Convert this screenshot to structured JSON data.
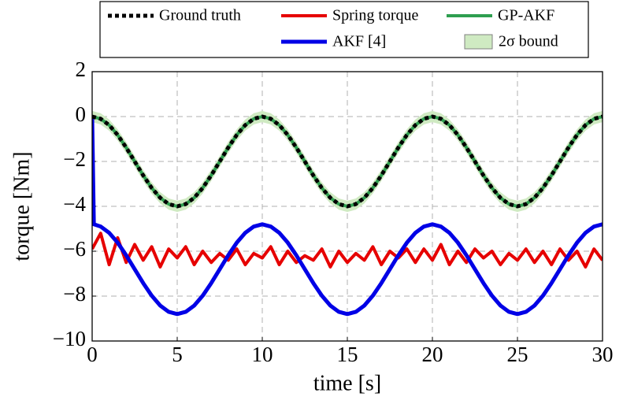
{
  "chart_data": {
    "type": "line",
    "xlabel": "time [s]",
    "ylabel": "torque [Nm]",
    "xlim": [
      0,
      30
    ],
    "ylim": [
      -10,
      2
    ],
    "xticks": [
      0,
      5,
      10,
      15,
      20,
      25,
      30
    ],
    "yticks": [
      2,
      0,
      {
        "value": -2,
        "label": "−2"
      },
      {
        "value": -4,
        "label": "−4"
      },
      {
        "value": -6,
        "label": "−6"
      },
      {
        "value": -8,
        "label": "−8"
      },
      {
        "value": -10,
        "label": "−10"
      }
    ],
    "grid": true,
    "legend": "top",
    "x": [
      0,
      0.5,
      1,
      1.5,
      2,
      2.5,
      3,
      3.5,
      4,
      4.5,
      5,
      5.5,
      6,
      6.5,
      7,
      7.5,
      8,
      8.5,
      9,
      9.5,
      10,
      10.5,
      11,
      11.5,
      12,
      12.5,
      13,
      13.5,
      14,
      14.5,
      15,
      15.5,
      16,
      16.5,
      17,
      17.5,
      18,
      18.5,
      19,
      19.5,
      20,
      20.5,
      21,
      21.5,
      22,
      22.5,
      23,
      23.5,
      24,
      24.5,
      25,
      25.5,
      26,
      26.5,
      27,
      27.5,
      28,
      28.5,
      29,
      29.5,
      30
    ],
    "series": [
      {
        "name": "2σ bound",
        "color": "#cfeac2",
        "kind": "band",
        "lower": [
          -0.25,
          -0.35,
          -0.63,
          -1.07,
          -1.63,
          -2.25,
          -2.87,
          -3.43,
          -3.87,
          -4.15,
          -4.25,
          -4.15,
          -3.87,
          -3.43,
          -2.87,
          -2.25,
          -1.63,
          -1.07,
          -0.63,
          -0.35,
          -0.25,
          -0.35,
          -0.63,
          -1.07,
          -1.63,
          -2.25,
          -2.87,
          -3.43,
          -3.87,
          -4.15,
          -4.25,
          -4.15,
          -3.87,
          -3.43,
          -2.87,
          -2.25,
          -1.63,
          -1.07,
          -0.63,
          -0.35,
          -0.25,
          -0.35,
          -0.63,
          -1.07,
          -1.63,
          -2.25,
          -2.87,
          -3.43,
          -3.87,
          -4.15,
          -4.25,
          -4.15,
          -3.87,
          -3.43,
          -2.87,
          -2.25,
          -1.63,
          -1.07,
          -0.63,
          -0.35,
          -0.25
        ],
        "upper": [
          0.25,
          0.15,
          -0.13,
          -0.57,
          -1.13,
          -1.75,
          -2.37,
          -2.93,
          -3.37,
          -3.65,
          -3.75,
          -3.65,
          -3.37,
          -2.93,
          -2.37,
          -1.75,
          -1.13,
          -0.57,
          -0.13,
          0.15,
          0.25,
          0.15,
          -0.13,
          -0.57,
          -1.13,
          -1.75,
          -2.37,
          -2.93,
          -3.37,
          -3.65,
          -3.75,
          -3.65,
          -3.37,
          -2.93,
          -2.37,
          -1.75,
          -1.13,
          -0.57,
          -0.13,
          0.15,
          0.25,
          0.15,
          -0.13,
          -0.57,
          -1.13,
          -1.75,
          -2.37,
          -2.93,
          -3.37,
          -3.65,
          -3.75,
          -3.65,
          -3.37,
          -2.93,
          -2.37,
          -1.75,
          -1.13,
          -0.57,
          -0.13,
          0.15,
          0.25
        ]
      },
      {
        "name": "Spring torque",
        "color": "#e60000",
        "width": 4,
        "values": [
          -5.9,
          -5.2,
          -6.6,
          -5.4,
          -6.5,
          -5.7,
          -6.4,
          -5.8,
          -6.7,
          -5.9,
          -6.3,
          -5.8,
          -6.6,
          -6.0,
          -6.5,
          -6.1,
          -6.4,
          -5.9,
          -6.6,
          -6.1,
          -6.3,
          -5.8,
          -6.6,
          -6.0,
          -6.5,
          -6.2,
          -6.4,
          -5.9,
          -6.7,
          -6.0,
          -6.5,
          -6.1,
          -6.4,
          -5.8,
          -6.6,
          -6.0,
          -6.3,
          -5.9,
          -6.5,
          -5.9,
          -6.4,
          -5.7,
          -6.6,
          -6.0,
          -6.5,
          -5.9,
          -6.3,
          -6.0,
          -6.6,
          -6.1,
          -6.4,
          -5.9,
          -6.5,
          -6.0,
          -6.6,
          -5.9,
          -6.4,
          -6.0,
          -6.7,
          -5.9,
          -6.4
        ]
      },
      {
        "name": "AKF [4]",
        "color": "#0000e6",
        "width": 5,
        "x": [
          0,
          0.1,
          0.5,
          1,
          1.5,
          2,
          2.5,
          3,
          3.5,
          4,
          4.5,
          5,
          5.5,
          6,
          6.5,
          7,
          7.5,
          8,
          8.5,
          9,
          9.5,
          10,
          10.5,
          11,
          11.5,
          12,
          12.5,
          13,
          13.5,
          14,
          14.5,
          15,
          15.5,
          16,
          16.5,
          17,
          17.5,
          18,
          18.5,
          19,
          19.5,
          20,
          20.5,
          21,
          21.5,
          22,
          22.5,
          23,
          23.5,
          24,
          24.5,
          25,
          25.5,
          26,
          26.5,
          27,
          27.5,
          28,
          28.5,
          29,
          29.5,
          30
        ],
        "values": [
          0,
          -4.8,
          -4.9,
          -5.18,
          -5.62,
          -6.18,
          -6.8,
          -7.42,
          -7.98,
          -8.42,
          -8.7,
          -8.8,
          -8.7,
          -8.42,
          -7.98,
          -7.42,
          -6.8,
          -6.18,
          -5.62,
          -5.18,
          -4.9,
          -4.8,
          -4.9,
          -5.18,
          -5.62,
          -6.18,
          -6.8,
          -7.42,
          -7.98,
          -8.42,
          -8.7,
          -8.8,
          -8.7,
          -8.42,
          -7.98,
          -7.42,
          -6.8,
          -6.18,
          -5.62,
          -5.18,
          -4.9,
          -4.8,
          -4.9,
          -5.18,
          -5.62,
          -6.18,
          -6.8,
          -7.42,
          -7.98,
          -8.42,
          -8.7,
          -8.8,
          -8.7,
          -8.42,
          -7.98,
          -7.42,
          -6.8,
          -6.18,
          -5.62,
          -5.18,
          -4.9,
          -4.8
        ]
      },
      {
        "name": "GP-AKF",
        "color": "#2e9e4f",
        "width": 4,
        "values": [
          0,
          -0.1,
          -0.38,
          -0.82,
          -1.38,
          -2,
          -2.62,
          -3.18,
          -3.62,
          -3.9,
          -4,
          -3.9,
          -3.62,
          -3.18,
          -2.62,
          -2,
          -1.38,
          -0.82,
          -0.38,
          -0.1,
          0,
          -0.1,
          -0.38,
          -0.82,
          -1.38,
          -2,
          -2.62,
          -3.18,
          -3.62,
          -3.9,
          -4,
          -3.9,
          -3.62,
          -3.18,
          -2.62,
          -2,
          -1.38,
          -0.82,
          -0.38,
          -0.1,
          0,
          -0.1,
          -0.38,
          -0.82,
          -1.38,
          -2,
          -2.62,
          -3.18,
          -3.62,
          -3.9,
          -4,
          -3.9,
          -3.62,
          -3.18,
          -2.62,
          -2,
          -1.38,
          -0.82,
          -0.38,
          -0.1,
          0
        ]
      },
      {
        "name": "Ground truth",
        "color": "#000000",
        "width": 5,
        "dashed": true,
        "values": [
          0,
          -0.1,
          -0.38,
          -0.82,
          -1.38,
          -2,
          -2.62,
          -3.18,
          -3.62,
          -3.9,
          -4,
          -3.9,
          -3.62,
          -3.18,
          -2.62,
          -2,
          -1.38,
          -0.82,
          -0.38,
          -0.1,
          0,
          -0.1,
          -0.38,
          -0.82,
          -1.38,
          -2,
          -2.62,
          -3.18,
          -3.62,
          -3.9,
          -4,
          -3.9,
          -3.62,
          -3.18,
          -2.62,
          -2,
          -1.38,
          -0.82,
          -0.38,
          -0.1,
          0,
          -0.1,
          -0.38,
          -0.82,
          -1.38,
          -2,
          -2.62,
          -3.18,
          -3.62,
          -3.9,
          -4,
          -3.9,
          -3.62,
          -3.18,
          -2.62,
          -2,
          -1.38,
          -0.82,
          -0.38,
          -0.1,
          0
        ]
      }
    ]
  }
}
